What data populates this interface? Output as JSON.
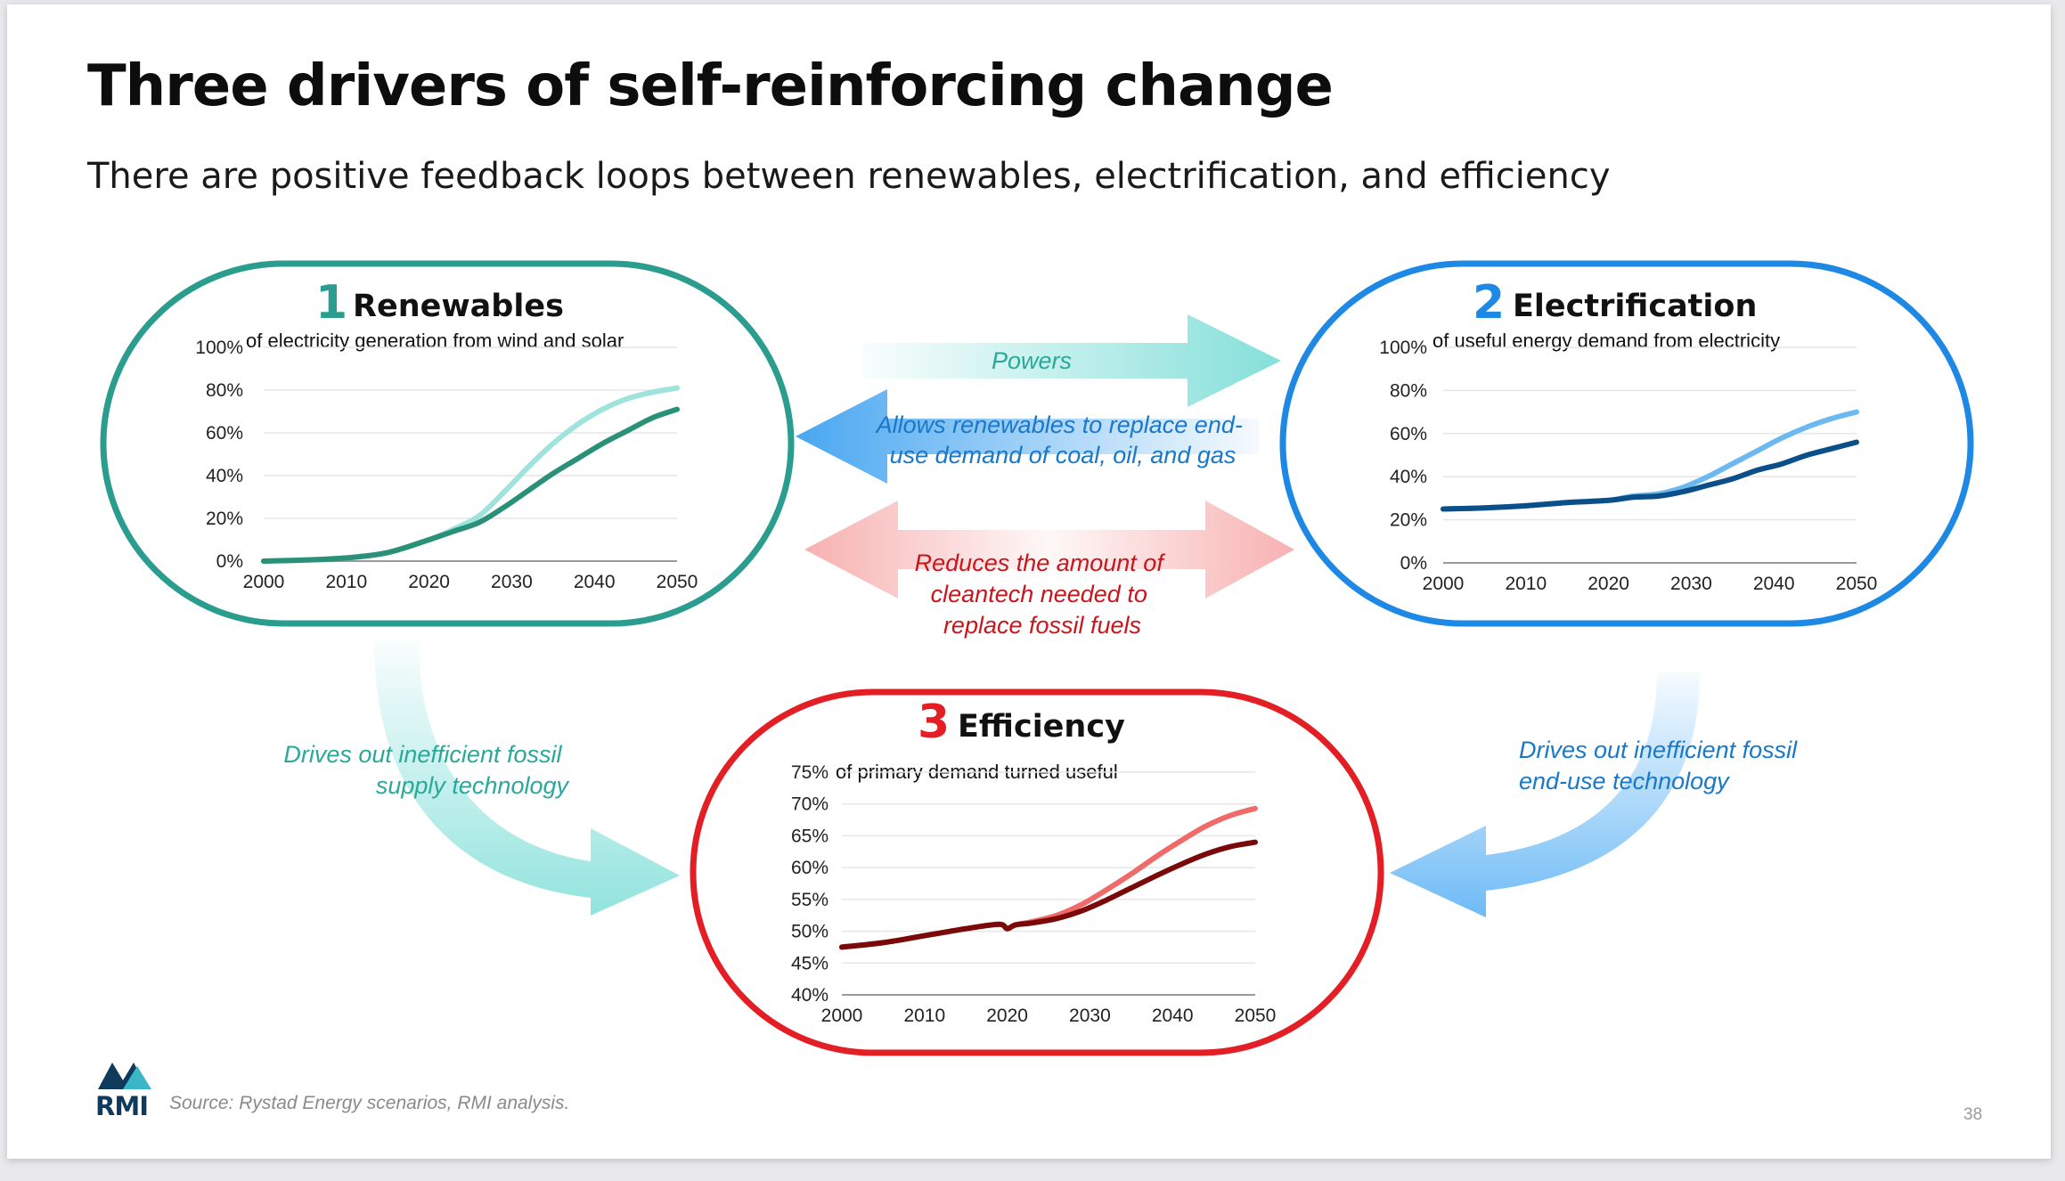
{
  "slide": {
    "title": "Three drivers of self-reinforcing change",
    "subtitle": "There are positive feedback loops between renewables, electrification, and efficiency",
    "source": "Source: Rystad Energy scenarios, RMI analysis.",
    "page_number": "38",
    "logo_text": "RMI"
  },
  "colors": {
    "renewables": "#2a9d8f",
    "electrification": "#1e88e5",
    "efficiency": "#e31e24",
    "powers_arrow": "#7fded8",
    "allows_arrow": "#3fa2f0",
    "reduces_arrow": "#f6a3a3",
    "teal_text": "#2aa89a",
    "blue_text": "#1a78c8",
    "red_text": "#c8161c"
  },
  "arrows": [
    {
      "id": "powers",
      "label": "Powers"
    },
    {
      "id": "allows",
      "label_lines": [
        "Allows renewables to replace end-",
        "use demand of coal, oil, and gas"
      ]
    },
    {
      "id": "reduces",
      "label_lines": [
        "Reduces the amount of",
        "cleantech needed to",
        "replace fossil fuels"
      ]
    },
    {
      "id": "drives-left",
      "label_lines": [
        "Drives out inefficient fossil",
        "supply technology"
      ]
    },
    {
      "id": "drives-right",
      "label_lines": [
        "Drives out inefficient fossil",
        "end-use technology"
      ]
    }
  ],
  "chart_data": [
    {
      "type": "line",
      "number": "1",
      "title": "Renewables",
      "description": "of electricity generation from wind and solar",
      "ylim": [
        0,
        100
      ],
      "yticks": [
        "0%",
        "20%",
        "40%",
        "60%",
        "80%",
        "100%"
      ],
      "ytick_values": [
        0,
        20,
        40,
        60,
        80,
        100
      ],
      "xlim": [
        2000,
        2050
      ],
      "xticks": [
        "2000",
        "2010",
        "2020",
        "2030",
        "2040",
        "2050"
      ],
      "xtick_values": [
        2000,
        2010,
        2020,
        2030,
        2040,
        2050
      ],
      "grid": true,
      "series": [
        {
          "color": "#9fe3dd",
          "x": [
            2000,
            2005,
            2010,
            2015,
            2020,
            2023,
            2026,
            2029,
            2032,
            2035,
            2038,
            2041,
            2044,
            2047,
            2050
          ],
          "y": [
            0,
            0.5,
            1.5,
            4,
            10,
            15,
            21,
            32,
            44,
            55,
            64,
            71,
            76,
            79,
            81
          ]
        },
        {
          "color": "#2a9178",
          "x": [
            2000,
            2005,
            2010,
            2015,
            2020,
            2023,
            2026,
            2029,
            2032,
            2035,
            2038,
            2041,
            2044,
            2047,
            2050
          ],
          "y": [
            0,
            0.5,
            1.5,
            4,
            10,
            14,
            18,
            25,
            33,
            41,
            48,
            55,
            61,
            67,
            71
          ]
        }
      ]
    },
    {
      "type": "line",
      "number": "2",
      "title": "Electrification",
      "description": "of useful energy demand from electricity",
      "ylim": [
        0,
        100
      ],
      "yticks": [
        "0%",
        "20%",
        "40%",
        "60%",
        "80%",
        "100%"
      ],
      "ytick_values": [
        0,
        20,
        40,
        60,
        80,
        100
      ],
      "xlim": [
        2000,
        2050
      ],
      "xticks": [
        "2000",
        "2010",
        "2020",
        "2030",
        "2040",
        "2050"
      ],
      "xtick_values": [
        2000,
        2010,
        2020,
        2030,
        2040,
        2050
      ],
      "grid": true,
      "series": [
        {
          "color": "#6cb9f2",
          "x": [
            2000,
            2005,
            2010,
            2015,
            2020,
            2023,
            2026,
            2029,
            2032,
            2035,
            2038,
            2041,
            2044,
            2047,
            2050
          ],
          "y": [
            25,
            25.5,
            26.5,
            28,
            29,
            31,
            32,
            35,
            40,
            46,
            52,
            58,
            63,
            67,
            70
          ]
        },
        {
          "color": "#0b4f8a",
          "x": [
            2000,
            2005,
            2010,
            2015,
            2020,
            2023,
            2026,
            2029,
            2032,
            2035,
            2038,
            2041,
            2044,
            2047,
            2050
          ],
          "y": [
            25,
            25.5,
            26.5,
            28,
            29,
            30.5,
            31,
            33,
            36,
            39,
            43,
            46,
            50,
            53,
            56
          ]
        }
      ]
    },
    {
      "type": "line",
      "number": "3",
      "title": "Efficiency",
      "description": "of primary demand turned useful",
      "ylim": [
        40,
        75
      ],
      "yticks": [
        "40%",
        "45%",
        "50%",
        "55%",
        "60%",
        "65%",
        "70%",
        "75%"
      ],
      "ytick_values": [
        40,
        45,
        50,
        55,
        60,
        65,
        70,
        75
      ],
      "xlim": [
        2000,
        2050
      ],
      "xticks": [
        "2000",
        "2010",
        "2020",
        "2030",
        "2040",
        "2050"
      ],
      "xtick_values": [
        2000,
        2010,
        2020,
        2030,
        2040,
        2050
      ],
      "grid": true,
      "series": [
        {
          "color": "#f06a6a",
          "x": [
            2000,
            2005,
            2010,
            2015,
            2019,
            2020,
            2021,
            2023,
            2026,
            2029,
            2032,
            2035,
            2038,
            2041,
            2044,
            2047,
            2050
          ],
          "y": [
            47.5,
            48.2,
            49.3,
            50.4,
            51.1,
            50.4,
            51,
            51.5,
            52.5,
            54.2,
            56.5,
            59,
            61.7,
            64.2,
            66.5,
            68.2,
            69.3
          ]
        },
        {
          "color": "#7a0a0a",
          "x": [
            2000,
            2005,
            2010,
            2015,
            2019,
            2020,
            2021,
            2023,
            2026,
            2029,
            2032,
            2035,
            2038,
            2041,
            2044,
            2047,
            2050
          ],
          "y": [
            47.5,
            48.2,
            49.3,
            50.4,
            51.1,
            50.4,
            51,
            51.3,
            52,
            53.2,
            54.9,
            56.8,
            58.7,
            60.5,
            62.1,
            63.3,
            64
          ]
        }
      ]
    }
  ]
}
